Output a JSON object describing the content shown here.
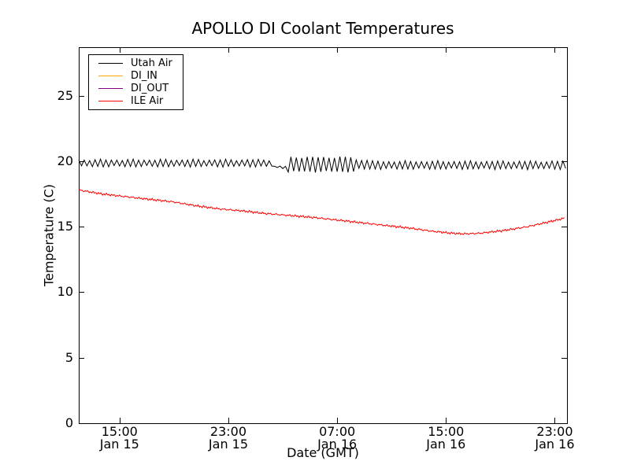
{
  "chart_data": {
    "type": "line",
    "title": "APOLLO DI Coolant Temperatures",
    "xlabel": "Date (GMT)",
    "ylabel": "Temperature (C)",
    "ylim": [
      0,
      28.7
    ],
    "xlim_hours": [
      0,
      35.9
    ],
    "grid": false,
    "legend_position": "upper left",
    "yticks": [
      0,
      5,
      10,
      15,
      20,
      25
    ],
    "xticks": [
      {
        "hour": 3,
        "time": "15:00",
        "date": "Jan 15"
      },
      {
        "hour": 11,
        "time": "23:00",
        "date": "Jan 15"
      },
      {
        "hour": 19,
        "time": "07:00",
        "date": "Jan 16"
      },
      {
        "hour": 27,
        "time": "15:00",
        "date": "Jan 16"
      },
      {
        "hour": 35,
        "time": "23:00",
        "date": "Jan 16"
      }
    ],
    "series": [
      {
        "name": "Utah Air",
        "color": "#000000",
        "style": "sawtooth-oscillation",
        "osc_period_hours": 0.4,
        "segments": [
          {
            "h0": 0,
            "h1": 14.3,
            "mean": 19.85,
            "amp": 0.25
          },
          {
            "h0": 14.3,
            "h1": 15.2,
            "mean": 19.55,
            "amp": 0.05
          },
          {
            "h0": 15.2,
            "h1": 20.2,
            "mean": 19.75,
            "amp": 0.55
          },
          {
            "h0": 20.2,
            "h1": 21.5,
            "mean": 19.75,
            "amp": 0.35
          },
          {
            "h0": 21.5,
            "h1": 35.9,
            "mean": 19.7,
            "amp": 0.28
          }
        ]
      },
      {
        "name": "DI_IN",
        "color": "#ffa500",
        "style": "no-visible-data",
        "points": []
      },
      {
        "name": "DI_OUT",
        "color": "#800080",
        "style": "no-visible-data",
        "points": []
      },
      {
        "name": "ILE Air",
        "color": "#ff0000",
        "style": "noisy-line",
        "points": [
          [
            0,
            17.8
          ],
          [
            1.7,
            17.5
          ],
          [
            3.4,
            17.3
          ],
          [
            5.1,
            17.1
          ],
          [
            6.9,
            16.9
          ],
          [
            8.6,
            16.6
          ],
          [
            10.4,
            16.35
          ],
          [
            12.1,
            16.2
          ],
          [
            13.8,
            16.0
          ],
          [
            15.6,
            15.85
          ],
          [
            17.3,
            15.7
          ],
          [
            19.1,
            15.5
          ],
          [
            20.8,
            15.3
          ],
          [
            22.5,
            15.1
          ],
          [
            24.3,
            14.9
          ],
          [
            26.0,
            14.65
          ],
          [
            27.5,
            14.5
          ],
          [
            28.3,
            14.45
          ],
          [
            29.5,
            14.5
          ],
          [
            31.2,
            14.7
          ],
          [
            33.0,
            15.0
          ],
          [
            34.7,
            15.4
          ],
          [
            35.7,
            15.65
          ]
        ]
      }
    ]
  }
}
